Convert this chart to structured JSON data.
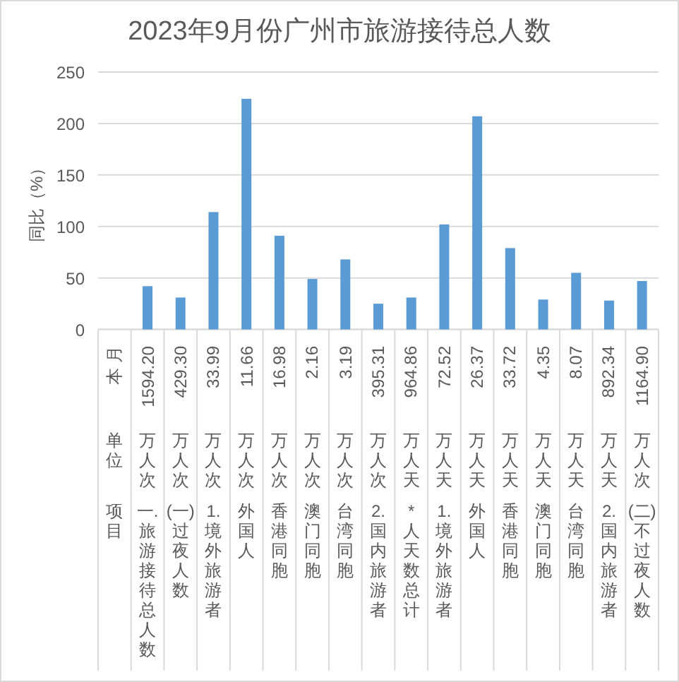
{
  "chart_data": {
    "type": "bar",
    "title": "2023年9月份广州市旅游接待总人数",
    "ylabel": "同比（%）",
    "categories": [
      "本 月",
      "1594.20",
      "429.30",
      "33.99",
      "11.66",
      "16.98",
      "2.16",
      "3.19",
      "395.31",
      "964.86",
      "72.52",
      "26.37",
      "33.72",
      "4.35",
      "8.07",
      "892.34",
      "1164.90"
    ],
    "annotations": [
      "单位",
      "万人次",
      "万人次",
      "万人次",
      "万人次",
      "万人次",
      "万人次",
      "万人次",
      "万人次",
      "万人天",
      "万人天",
      "万人天",
      "万人天",
      "万人天",
      "万人天",
      "万人天",
      "万人次",
      "项目",
      "一.旅游接待总人数",
      "(一)过夜人数",
      "1.境外旅游者",
      "外国人",
      "香港同胞",
      "澳门同胞",
      "台湾同胞",
      "2.国内旅游者",
      "*人天数总计",
      "1.境外旅游者",
      "外国人",
      "香港同胞",
      "澳门同胞",
      "台湾同胞",
      "2.国内旅游者",
      "(二)不过夜人数"
    ],
    "values": [
      null,
      42,
      31,
      114,
      224,
      91,
      49,
      68,
      25,
      31,
      102,
      207,
      79,
      29,
      55,
      28,
      47
    ],
    "color": "#5b9bd5",
    "ylim": [
      0,
      250
    ],
    "yticks": [
      0,
      50,
      100,
      150,
      200,
      250
    ],
    "grid": "y"
  }
}
